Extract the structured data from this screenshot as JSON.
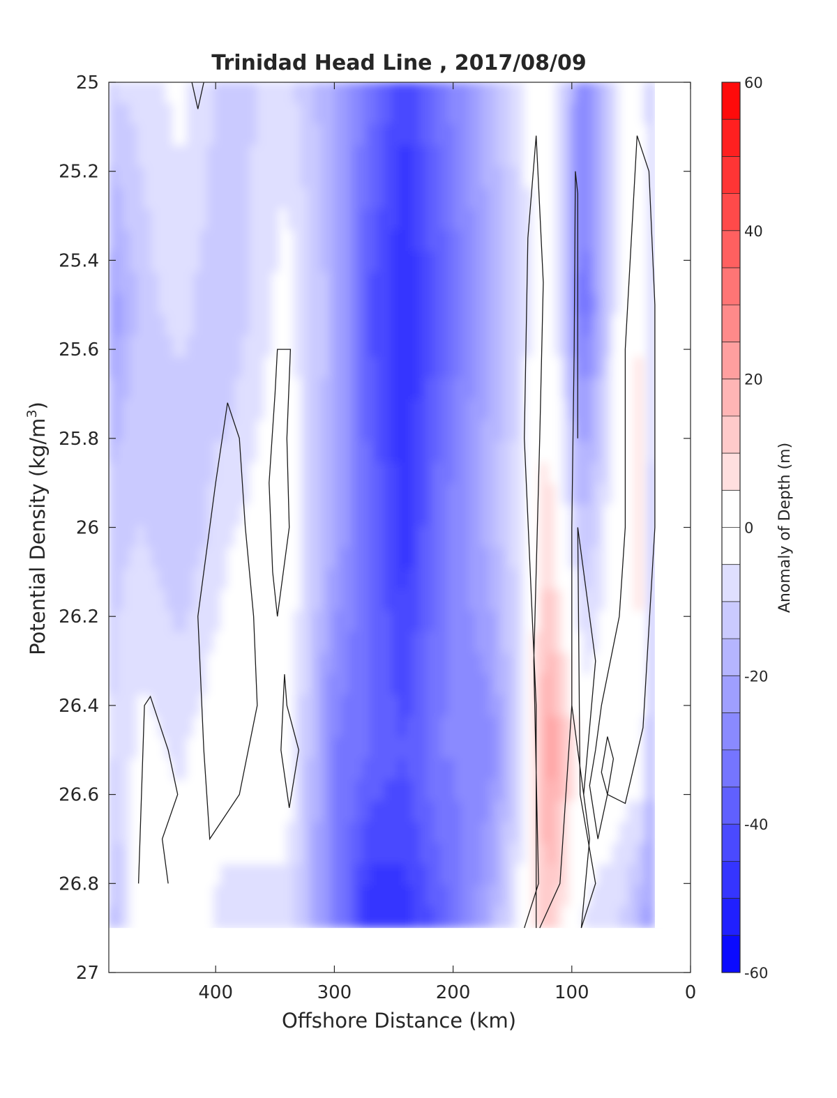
{
  "chart_data": {
    "type": "heatmap",
    "title": "Trinidad Head Line , 2017/08/09",
    "xlabel": "Offshore Distance (km)",
    "ylabel_main": "Potential Density (kg/m",
    "ylabel_sup": "3",
    "ylabel_close": ")",
    "colorbar_label": "Anomaly of Depth (m)",
    "xlim": [
      490,
      0
    ],
    "ylim": [
      25,
      27
    ],
    "x_reversed": true,
    "y_reversed": true,
    "x_ticks": [
      400,
      300,
      200,
      100,
      0
    ],
    "x_tick_labels": [
      "400",
      "300",
      "200",
      "100",
      "0"
    ],
    "y_ticks": [
      25,
      25.2,
      25.4,
      25.6,
      25.8,
      26,
      26.2,
      26.4,
      26.6,
      26.8,
      27
    ],
    "y_tick_labels": [
      "25",
      "25.2",
      "25.4",
      "25.6",
      "25.8",
      "26",
      "26.2",
      "26.4",
      "26.6",
      "26.8",
      "27"
    ],
    "colorbar": {
      "range": [
        -60,
        60
      ],
      "levels": [
        -60,
        -55,
        -50,
        -45,
        -40,
        -35,
        -30,
        -25,
        -20,
        -15,
        -10,
        -5,
        0,
        5,
        10,
        15,
        20,
        25,
        30,
        35,
        40,
        45,
        50,
        55,
        60
      ],
      "tick_values": [
        -60,
        -40,
        -20,
        0,
        20,
        40,
        60
      ],
      "tick_labels": [
        "-60",
        "-40",
        "-20",
        "0",
        "20",
        "40",
        "60"
      ],
      "colors_low": "#0000ff",
      "colors_mid": "#ffffff",
      "colors_high": "#ff0000"
    },
    "data_extent": {
      "x": [
        490,
        30
      ],
      "y": [
        25,
        26.9
      ]
    },
    "columns": [
      {
        "x": 490,
        "y": [
          25.0,
          25.5,
          26.0,
          26.5,
          26.9
        ],
        "values": [
          -10,
          -25,
          -12,
          -10,
          -18
        ]
      },
      {
        "x": 460,
        "y": [
          25.0,
          25.5,
          26.0,
          26.5,
          26.9
        ],
        "values": [
          -8,
          -12,
          -10,
          -3,
          3
        ]
      },
      {
        "x": 430,
        "y": [
          25.0,
          25.5,
          26.0,
          26.5,
          26.9
        ],
        "values": [
          -3,
          -8,
          -15,
          -6,
          0
        ]
      },
      {
        "x": 390,
        "y": [
          25.0,
          25.5,
          26.0,
          26.5,
          26.9
        ],
        "values": [
          -12,
          -15,
          -6,
          0,
          -8
        ]
      },
      {
        "x": 340,
        "y": [
          25.0,
          25.5,
          26.0,
          26.5,
          26.9
        ],
        "values": [
          -8,
          -2,
          0,
          0,
          -8
        ]
      },
      {
        "x": 300,
        "y": [
          25.0,
          25.5,
          26.0,
          26.5,
          26.9
        ],
        "values": [
          -20,
          -18,
          -20,
          -30,
          -28
        ]
      },
      {
        "x": 270,
        "y": [
          25.0,
          25.5,
          26.0,
          26.5,
          26.9
        ],
        "values": [
          -32,
          -40,
          -35,
          -35,
          -50
        ]
      },
      {
        "x": 240,
        "y": [
          25.0,
          25.5,
          26.0,
          26.5,
          26.9
        ],
        "values": [
          -45,
          -50,
          -48,
          -40,
          -48
        ]
      },
      {
        "x": 210,
        "y": [
          25.0,
          25.5,
          26.0,
          26.5,
          26.9
        ],
        "values": [
          -32,
          -38,
          -32,
          -30,
          -38
        ]
      },
      {
        "x": 170,
        "y": [
          25.0,
          25.5,
          26.0,
          26.5,
          26.9
        ],
        "values": [
          -18,
          -20,
          -18,
          -28,
          -20
        ]
      },
      {
        "x": 140,
        "y": [
          25.0,
          25.5,
          26.0,
          26.5,
          26.9
        ],
        "values": [
          -5,
          -8,
          -5,
          -8,
          0
        ]
      },
      {
        "x": 120,
        "y": [
          25.0,
          25.5,
          26.0,
          26.5,
          26.9
        ],
        "values": [
          0,
          5,
          8,
          25,
          12
        ]
      },
      {
        "x": 90,
        "y": [
          25.0,
          25.5,
          26.0,
          26.5,
          26.9
        ],
        "values": [
          -28,
          -35,
          -15,
          0,
          -5
        ]
      },
      {
        "x": 60,
        "y": [
          25.0,
          25.5,
          26.0,
          26.5,
          26.9
        ],
        "values": [
          -5,
          -2,
          0,
          0,
          -10
        ]
      },
      {
        "x": 40,
        "y": [
          25.0,
          25.5,
          26.0,
          26.5,
          26.9
        ],
        "values": [
          -3,
          5,
          10,
          0,
          -20
        ]
      },
      {
        "x": 30,
        "y": [
          25.0,
          25.5,
          26.0,
          26.5,
          26.9
        ],
        "values": [
          -15,
          -18,
          -25,
          -25,
          -25
        ]
      }
    ],
    "zero_contours": [
      [
        [
          420,
          25.0
        ],
        [
          415,
          25.06
        ],
        [
          410,
          25.0
        ]
      ],
      [
        [
          140,
          26.9
        ],
        [
          128,
          26.8
        ],
        [
          132,
          26.3
        ],
        [
          127,
          25.8
        ],
        [
          124,
          25.45
        ],
        [
          130,
          25.12
        ],
        [
          137,
          25.35
        ],
        [
          140,
          25.8
        ],
        [
          130,
          26.4
        ],
        [
          130,
          26.9
        ]
      ],
      [
        [
          127,
          26.9
        ],
        [
          110,
          26.8
        ],
        [
          100,
          26.4
        ],
        [
          100,
          26.0
        ],
        [
          98,
          25.6
        ],
        [
          97,
          25.2
        ],
        [
          95,
          25.25
        ],
        [
          95,
          25.8
        ]
      ],
      [
        [
          92,
          26.9
        ],
        [
          80,
          26.8
        ],
        [
          93,
          26.6
        ],
        [
          95,
          26.0
        ],
        [
          80,
          26.3
        ],
        [
          90,
          26.6
        ]
      ],
      [
        [
          92,
          26.9
        ],
        [
          85,
          26.7
        ],
        [
          90,
          26.6
        ],
        [
          100,
          26.4
        ]
      ],
      [
        [
          80,
          26.5
        ],
        [
          85,
          26.58
        ],
        [
          78,
          26.7
        ],
        [
          70,
          26.6
        ],
        [
          55,
          26.62
        ],
        [
          40,
          26.45
        ],
        [
          30,
          26.0
        ],
        [
          30,
          25.5
        ],
        [
          35,
          25.2
        ],
        [
          45,
          25.12
        ],
        [
          55,
          25.6
        ],
        [
          55,
          26.0
        ],
        [
          60,
          26.2
        ],
        [
          75,
          26.4
        ],
        [
          80,
          26.5
        ]
      ],
      [
        [
          70,
          26.47
        ],
        [
          65,
          26.52
        ],
        [
          70,
          26.6
        ],
        [
          75,
          26.55
        ],
        [
          70,
          26.47
        ]
      ],
      [
        [
          348,
          26.2
        ],
        [
          338,
          26.0
        ],
        [
          340,
          25.8
        ],
        [
          337,
          25.6
        ],
        [
          348,
          25.6
        ],
        [
          350,
          25.7
        ],
        [
          355,
          25.9
        ],
        [
          352,
          26.1
        ],
        [
          348,
          26.2
        ]
      ],
      [
        [
          342,
          26.33
        ],
        [
          345,
          26.5
        ],
        [
          338,
          26.63
        ],
        [
          330,
          26.5
        ],
        [
          340,
          26.4
        ],
        [
          342,
          26.33
        ]
      ],
      [
        [
          390,
          25.72
        ],
        [
          380,
          25.8
        ],
        [
          375,
          26.0
        ],
        [
          368,
          26.2
        ],
        [
          365,
          26.4
        ],
        [
          380,
          26.6
        ],
        [
          405,
          26.7
        ],
        [
          410,
          26.5
        ],
        [
          415,
          26.2
        ],
        [
          400,
          25.9
        ],
        [
          390,
          25.72
        ]
      ],
      [
        [
          465,
          26.8
        ],
        [
          460,
          26.4
        ],
        [
          455,
          26.38
        ],
        [
          440,
          26.5
        ],
        [
          432,
          26.6
        ],
        [
          445,
          26.7
        ],
        [
          440,
          26.8
        ]
      ]
    ]
  }
}
